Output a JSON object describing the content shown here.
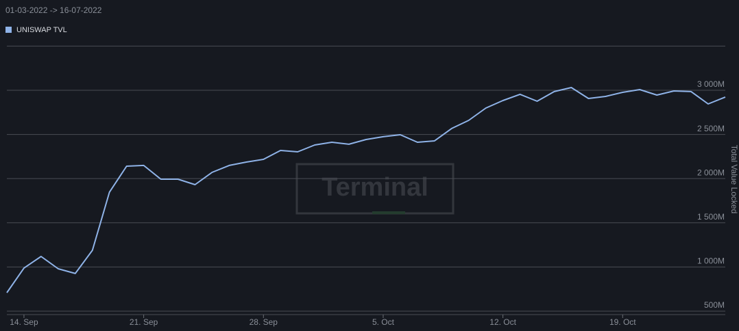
{
  "chart_data": {
    "type": "line",
    "subtitle": "01-03-2022 -> 16-07-2022",
    "watermark": "Terminal",
    "y_label": "Total Value Locked",
    "categories": [
      null,
      "14. Sep",
      null,
      null,
      null,
      null,
      null,
      null,
      "21. Sep",
      null,
      null,
      null,
      null,
      null,
      null,
      "28. Sep",
      null,
      null,
      null,
      null,
      null,
      null,
      "5. Oct",
      null,
      null,
      null,
      null,
      null,
      null,
      "12. Oct",
      null,
      null,
      null,
      null,
      null,
      null,
      "19. Oct",
      null,
      null,
      null,
      null,
      null,
      null
    ],
    "series": [
      {
        "name": "UNISWAP TVL",
        "color": "#8fb3e8",
        "values": [
          709,
          988,
          1119,
          980,
          926,
          1189,
          1847,
          2141,
          2149,
          1994,
          1994,
          1932,
          2071,
          2149,
          2187,
          2218,
          2319,
          2303,
          2381,
          2412,
          2389,
          2443,
          2474,
          2497,
          2412,
          2427,
          2567,
          2659,
          2799,
          2884,
          2954,
          2876,
          2985,
          3031,
          2907,
          2930,
          2977,
          3008,
          2946,
          2992,
          2985,
          2845,
          2923
        ]
      }
    ],
    "ylim": [
      461,
      3500
    ],
    "yticks": [
      {
        "value": 500,
        "label": "500M"
      },
      {
        "value": 1000,
        "label": "1 000M"
      },
      {
        "value": 1500,
        "label": "1 500M"
      },
      {
        "value": 2000,
        "label": "2 000M"
      },
      {
        "value": 2500,
        "label": "2 500M"
      },
      {
        "value": 3000,
        "label": "3 000M"
      },
      {
        "value": 3500,
        "label": null
      }
    ],
    "grid": true
  }
}
